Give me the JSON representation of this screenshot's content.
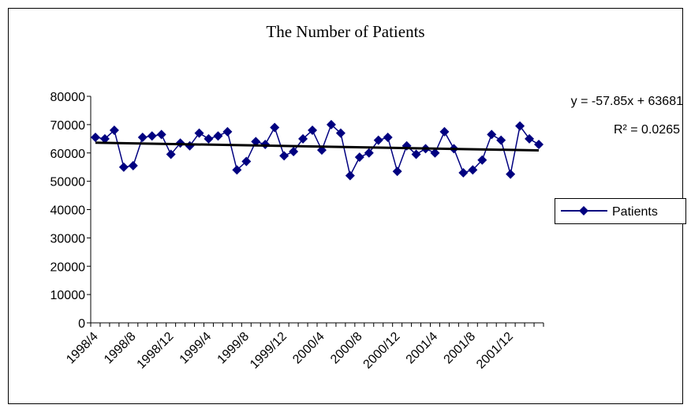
{
  "chart_data": {
    "type": "line",
    "title": "The Number of Patients",
    "categories": [
      "1998/4",
      null,
      null,
      null,
      "1998/8",
      null,
      null,
      null,
      "1998/12",
      null,
      null,
      null,
      "1999/4",
      null,
      null,
      null,
      "1999/8",
      null,
      null,
      null,
      "1999/12",
      null,
      null,
      null,
      "2000/4",
      null,
      null,
      null,
      "2000/8",
      null,
      null,
      null,
      "2000/12",
      null,
      null,
      null,
      "2001/4",
      null,
      null,
      null,
      "2001/8",
      null,
      null,
      null,
      "2001/12",
      null,
      null,
      null
    ],
    "series": [
      {
        "name": "Patients",
        "color": "#000080",
        "values": [
          65500,
          65000,
          68000,
          55000,
          55500,
          65500,
          66000,
          66500,
          59500,
          63500,
          62500,
          67000,
          65000,
          66000,
          67500,
          54000,
          57000,
          64000,
          63000,
          69000,
          59000,
          60500,
          65000,
          68000,
          61000,
          70000,
          67000,
          52000,
          58500,
          60000,
          64500,
          65500,
          53500,
          62500,
          59500,
          61500,
          60000,
          67500,
          61500,
          53000,
          54000,
          57500,
          66500,
          64500,
          52500,
          69500,
          65000,
          63000
        ]
      }
    ],
    "ylim": [
      0,
      80000
    ],
    "yticks": [
      0,
      10000,
      20000,
      30000,
      40000,
      50000,
      60000,
      70000,
      80000
    ],
    "grid": false,
    "legend": "right",
    "trendline": {
      "label": "y = -57.85x + 63681",
      "r2_label": "R² = 0.0265",
      "slope": -57.85,
      "intercept": 63681,
      "color": "#000000"
    }
  }
}
